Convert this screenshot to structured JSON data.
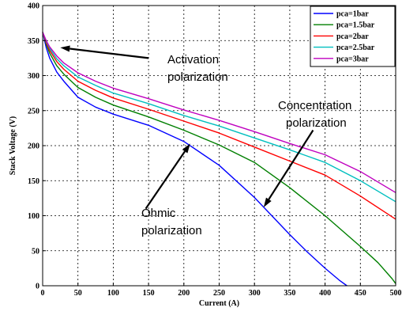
{
  "chart_data": {
    "type": "line",
    "xlabel": "Current (A)",
    "ylabel": "Stack Voltage (V)",
    "xlim": [
      0,
      500
    ],
    "ylim": [
      0,
      400
    ],
    "xticks": [
      0,
      50,
      100,
      150,
      200,
      250,
      300,
      350,
      400,
      450,
      500
    ],
    "yticks": [
      0,
      50,
      100,
      150,
      200,
      250,
      300,
      350,
      400
    ],
    "grid": true,
    "legend_position": "top-right",
    "series": [
      {
        "name": "pca=1bar",
        "color": "#0000ff",
        "x": [
          0,
          5,
          10,
          20,
          30,
          50,
          75,
          100,
          150,
          200,
          250,
          300,
          350,
          375,
          400,
          420,
          431
        ],
        "y": [
          362,
          340,
          325,
          305,
          292,
          269,
          255,
          245,
          229,
          206,
          172,
          126,
          73,
          48,
          25,
          8,
          0
        ]
      },
      {
        "name": "pca=1.5bar",
        "color": "#007f00",
        "x": [
          0,
          5,
          10,
          20,
          30,
          50,
          75,
          100,
          150,
          200,
          250,
          300,
          350,
          400,
          450,
          475,
          495,
          500
        ],
        "y": [
          362,
          345,
          332,
          314,
          302,
          283,
          269,
          258,
          241,
          222,
          201,
          176,
          140,
          100,
          56,
          33,
          10,
          3
        ]
      },
      {
        "name": "pca=2bar",
        "color": "#ff0000",
        "x": [
          0,
          5,
          10,
          20,
          30,
          50,
          75,
          100,
          150,
          200,
          250,
          300,
          350,
          400,
          450,
          500
        ],
        "y": [
          362,
          347,
          336,
          320,
          309,
          292,
          279,
          268,
          252,
          235,
          218,
          198,
          178,
          158,
          128,
          95
        ]
      },
      {
        "name": "pca=2.5bar",
        "color": "#00bfbf",
        "x": [
          0,
          5,
          10,
          20,
          30,
          50,
          75,
          100,
          150,
          200,
          250,
          300,
          350,
          400,
          450,
          500
        ],
        "y": [
          362,
          349,
          339,
          324,
          314,
          298,
          286,
          275,
          260,
          243,
          228,
          211,
          194,
          176,
          150,
          120
        ]
      },
      {
        "name": "pca=3bar",
        "color": "#bf00bf",
        "x": [
          0,
          5,
          10,
          20,
          30,
          50,
          75,
          100,
          150,
          200,
          250,
          300,
          350,
          400,
          450,
          500
        ],
        "y": [
          362,
          350,
          341,
          328,
          318,
          304,
          292,
          282,
          267,
          251,
          236,
          220,
          203,
          187,
          163,
          133
        ]
      }
    ],
    "annotations": [
      {
        "lines": [
          "Activation",
          "polarization"
        ],
        "arrow_from": [
          150,
          325
        ],
        "arrow_to": [
          25,
          340
        ]
      },
      {
        "lines": [
          "Concentration",
          "polarization"
        ],
        "arrow_from": [
          383,
          222
        ],
        "arrow_to": [
          313,
          112
        ]
      },
      {
        "lines": [
          "Ohmic",
          "polarization"
        ],
        "arrow_from": [
          146,
          110
        ],
        "arrow_to": [
          209,
          203
        ]
      }
    ]
  }
}
